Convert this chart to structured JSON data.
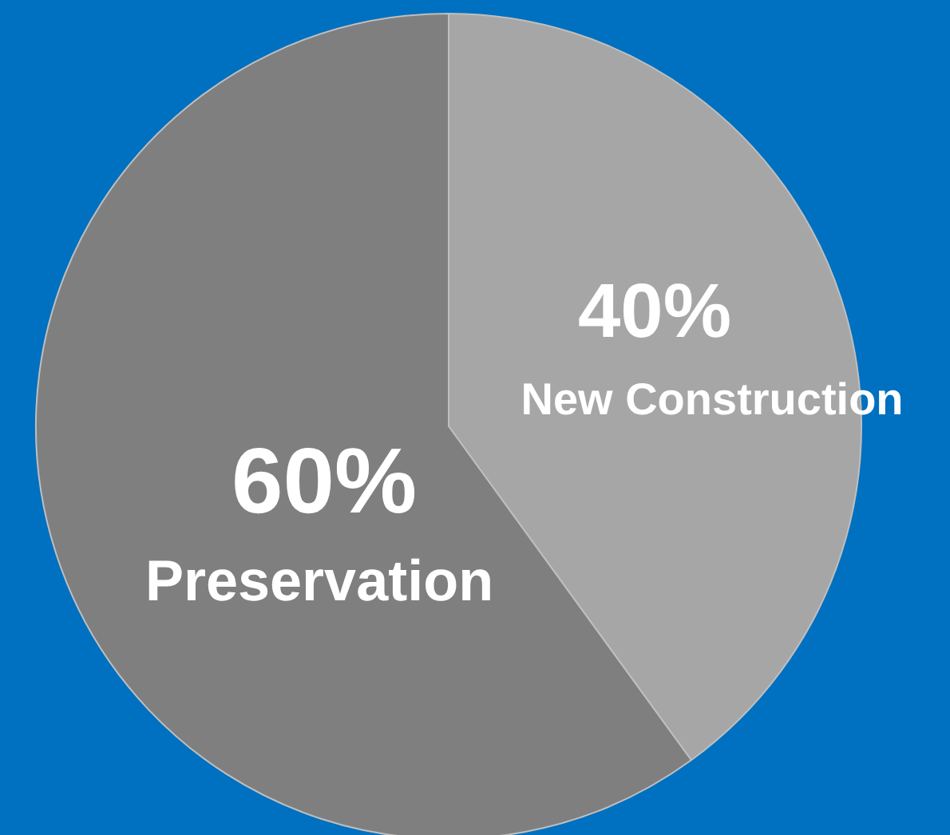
{
  "chart_data": {
    "type": "pie",
    "categories": [
      "New Construction",
      "Preservation"
    ],
    "values": [
      40,
      60
    ],
    "colors": [
      "#a6a6a6",
      "#7f7f7f"
    ],
    "value_labels": [
      "40%",
      "60%"
    ],
    "legend": false
  }
}
